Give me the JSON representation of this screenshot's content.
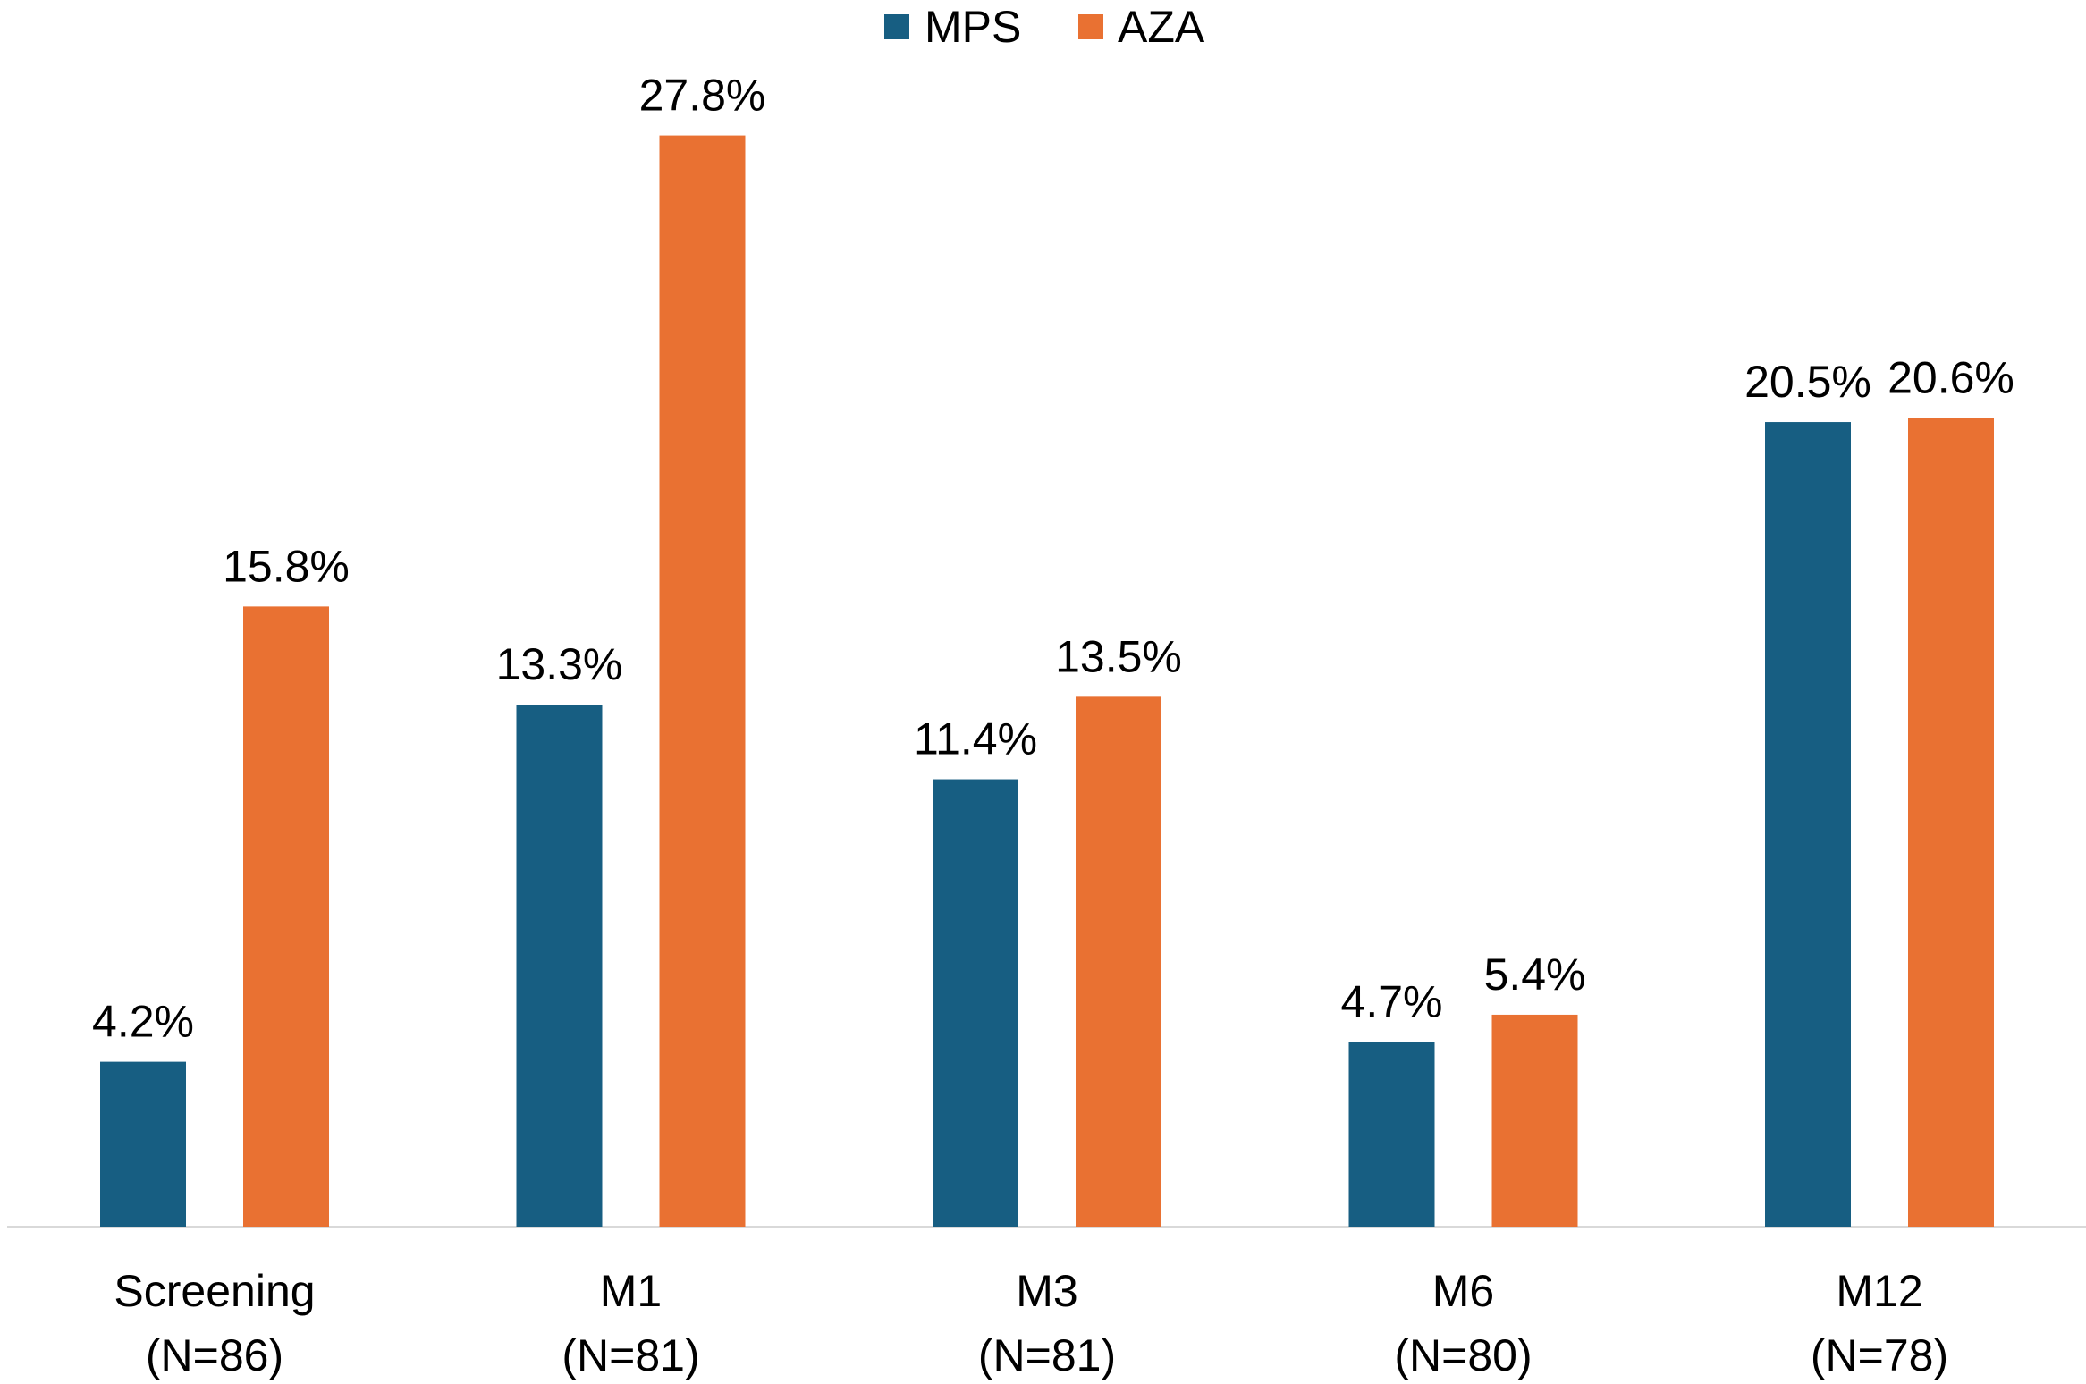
{
  "chart_data": {
    "type": "bar",
    "title": "",
    "xlabel": "",
    "ylabel": "",
    "ylim": [
      0,
      30
    ],
    "grid": false,
    "legend_position": "top-center",
    "categories": [
      {
        "name": "Screening",
        "n": "(N=86)"
      },
      {
        "name": "M1",
        "n": "(N=81)"
      },
      {
        "name": "M3",
        "n": "(N=81)"
      },
      {
        "name": "M6",
        "n": "(N=80)"
      },
      {
        "name": "M12",
        "n": "(N=78)"
      }
    ],
    "series": [
      {
        "name": "MPS",
        "color": "#175E82",
        "values": [
          4.2,
          13.3,
          11.4,
          4.7,
          20.5
        ],
        "labels": [
          "4.2%",
          "13.3%",
          "11.4%",
          "4.7%",
          "20.5%"
        ]
      },
      {
        "name": "AZA",
        "color": "#E97132",
        "values": [
          15.8,
          27.8,
          13.5,
          5.4,
          20.6
        ],
        "labels": [
          "15.8%",
          "27.8%",
          "13.5%",
          "5.4%",
          "20.6%"
        ]
      }
    ]
  }
}
